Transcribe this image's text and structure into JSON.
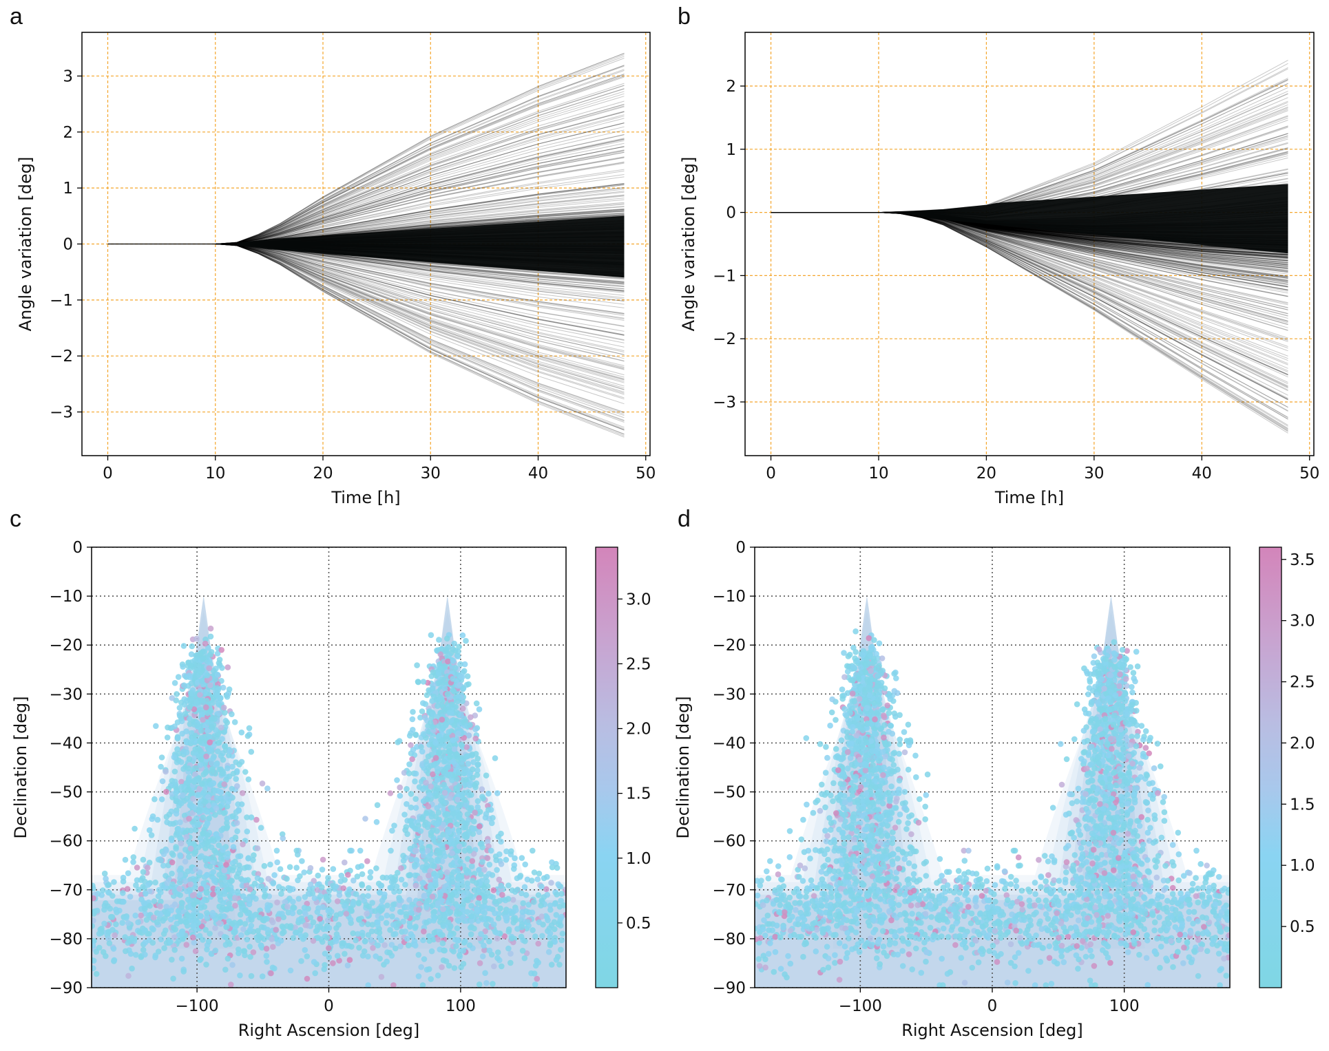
{
  "panels": {
    "a": {
      "label": "a"
    },
    "b": {
      "label": "b"
    },
    "c": {
      "label": "c"
    },
    "d": {
      "label": "d"
    }
  },
  "chart_data": [
    {
      "id": "a",
      "type": "line",
      "title": "",
      "xlabel": "Time [h]",
      "ylabel": "Angle variation [deg]",
      "xlim": [
        -2.4,
        50.4
      ],
      "ylim": [
        -3.78,
        3.78
      ],
      "xticks": [
        0,
        10,
        20,
        30,
        40,
        50
      ],
      "yticks": [
        -3,
        -2,
        -1,
        0,
        1,
        2,
        3
      ],
      "ytick_labels": [
        "−3",
        "−2",
        "−1",
        "0",
        "1",
        "2",
        "3"
      ],
      "grid": true,
      "grid_color": "#f4a52a",
      "line_color": "#000000",
      "trajectory_count": "many",
      "envelope": {
        "t": [
          0,
          10,
          12,
          15,
          20,
          30,
          40,
          48
        ],
        "upper": [
          0,
          0.0,
          0.03,
          0.25,
          0.85,
          1.95,
          2.85,
          3.45
        ],
        "lower": [
          0,
          0.0,
          -0.03,
          -0.25,
          -0.85,
          -1.95,
          -2.85,
          -3.45
        ],
        "dense_core_at_48h": [
          -0.55,
          0.45
        ]
      }
    },
    {
      "id": "b",
      "type": "line",
      "title": "",
      "xlabel": "Time [h]",
      "ylabel": "Angle variation [deg]",
      "xlim": [
        -2.4,
        50.4
      ],
      "ylim": [
        -3.85,
        2.85
      ],
      "xticks": [
        0,
        10,
        20,
        30,
        40,
        50
      ],
      "yticks": [
        -3,
        -2,
        -1,
        0,
        1,
        2
      ],
      "ytick_labels": [
        "−3",
        "−2",
        "−1",
        "0",
        "1",
        "2"
      ],
      "grid": true,
      "grid_color": "#f4a52a",
      "line_color": "#000000",
      "trajectory_count": "many",
      "envelope": {
        "t": [
          0,
          10,
          13,
          16,
          20,
          30,
          40,
          48
        ],
        "upper": [
          0,
          0.0,
          0.02,
          0.05,
          0.12,
          0.8,
          1.7,
          2.45
        ],
        "lower": [
          0,
          0.0,
          -0.03,
          -0.2,
          -0.55,
          -1.55,
          -2.65,
          -3.5
        ],
        "dense_core_at_48h": [
          -0.6,
          0.4
        ]
      }
    },
    {
      "id": "c",
      "type": "scatter",
      "title": "",
      "xlabel": "Right Ascension [deg]",
      "ylabel": "Declination [deg]",
      "xlim": [
        -180,
        180
      ],
      "ylim": [
        -90,
        0
      ],
      "xticks": [
        -100,
        0,
        100
      ],
      "xtick_labels": [
        "−100",
        "0",
        "100"
      ],
      "yticks": [
        0,
        -10,
        -20,
        -30,
        -40,
        -50,
        -60,
        -70,
        -80,
        -90
      ],
      "ytick_labels": [
        "0",
        "−10",
        "−20",
        "−30",
        "−40",
        "−50",
        "−60",
        "−70",
        "−80",
        "−90"
      ],
      "grid": true,
      "grid_style": "dotted",
      "clusters": [
        {
          "center_ra": -95,
          "peak_dec": -20,
          "base_dec": -70
        },
        {
          "center_ra": 90,
          "peak_dec": -20,
          "base_dec": -70
        }
      ],
      "density_background": "kde contours (blue)",
      "colorbar": {
        "min": 0.0,
        "max": 3.4,
        "ticks": [
          0.5,
          1.0,
          1.5,
          2.0,
          2.5,
          3.0
        ],
        "tick_labels": [
          "0.5",
          "1.0",
          "1.5",
          "2.0",
          "2.5",
          "3.0"
        ],
        "colors": [
          "#7fd6e4",
          "#87d3f0",
          "#b8bde0",
          "#c9a2cf",
          "#d385ba"
        ]
      }
    },
    {
      "id": "d",
      "type": "scatter",
      "title": "",
      "xlabel": "Right Ascension [deg]",
      "ylabel": "Declination [deg]",
      "xlim": [
        -180,
        180
      ],
      "ylim": [
        -90,
        0
      ],
      "xticks": [
        -100,
        0,
        100
      ],
      "xtick_labels": [
        "−100",
        "0",
        "100"
      ],
      "yticks": [
        0,
        -10,
        -20,
        -30,
        -40,
        -50,
        -60,
        -70,
        -80,
        -90
      ],
      "ytick_labels": [
        "0",
        "−10",
        "−20",
        "−30",
        "−40",
        "−50",
        "−60",
        "−70",
        "−80",
        "−90"
      ],
      "grid": true,
      "grid_style": "dotted",
      "clusters": [
        {
          "center_ra": -95,
          "peak_dec": -20,
          "base_dec": -70
        },
        {
          "center_ra": 90,
          "peak_dec": -20,
          "base_dec": -70
        }
      ],
      "density_background": "kde contours (blue)",
      "colorbar": {
        "min": 0.0,
        "max": 3.6,
        "ticks": [
          0.5,
          1.0,
          1.5,
          2.0,
          2.5,
          3.0,
          3.5
        ],
        "tick_labels": [
          "0.5",
          "1.0",
          "1.5",
          "2.0",
          "2.5",
          "3.0",
          "3.5"
        ],
        "colors": [
          "#7fd6e4",
          "#87d3f0",
          "#b8bde0",
          "#c9a2cf",
          "#d385ba"
        ]
      }
    }
  ]
}
